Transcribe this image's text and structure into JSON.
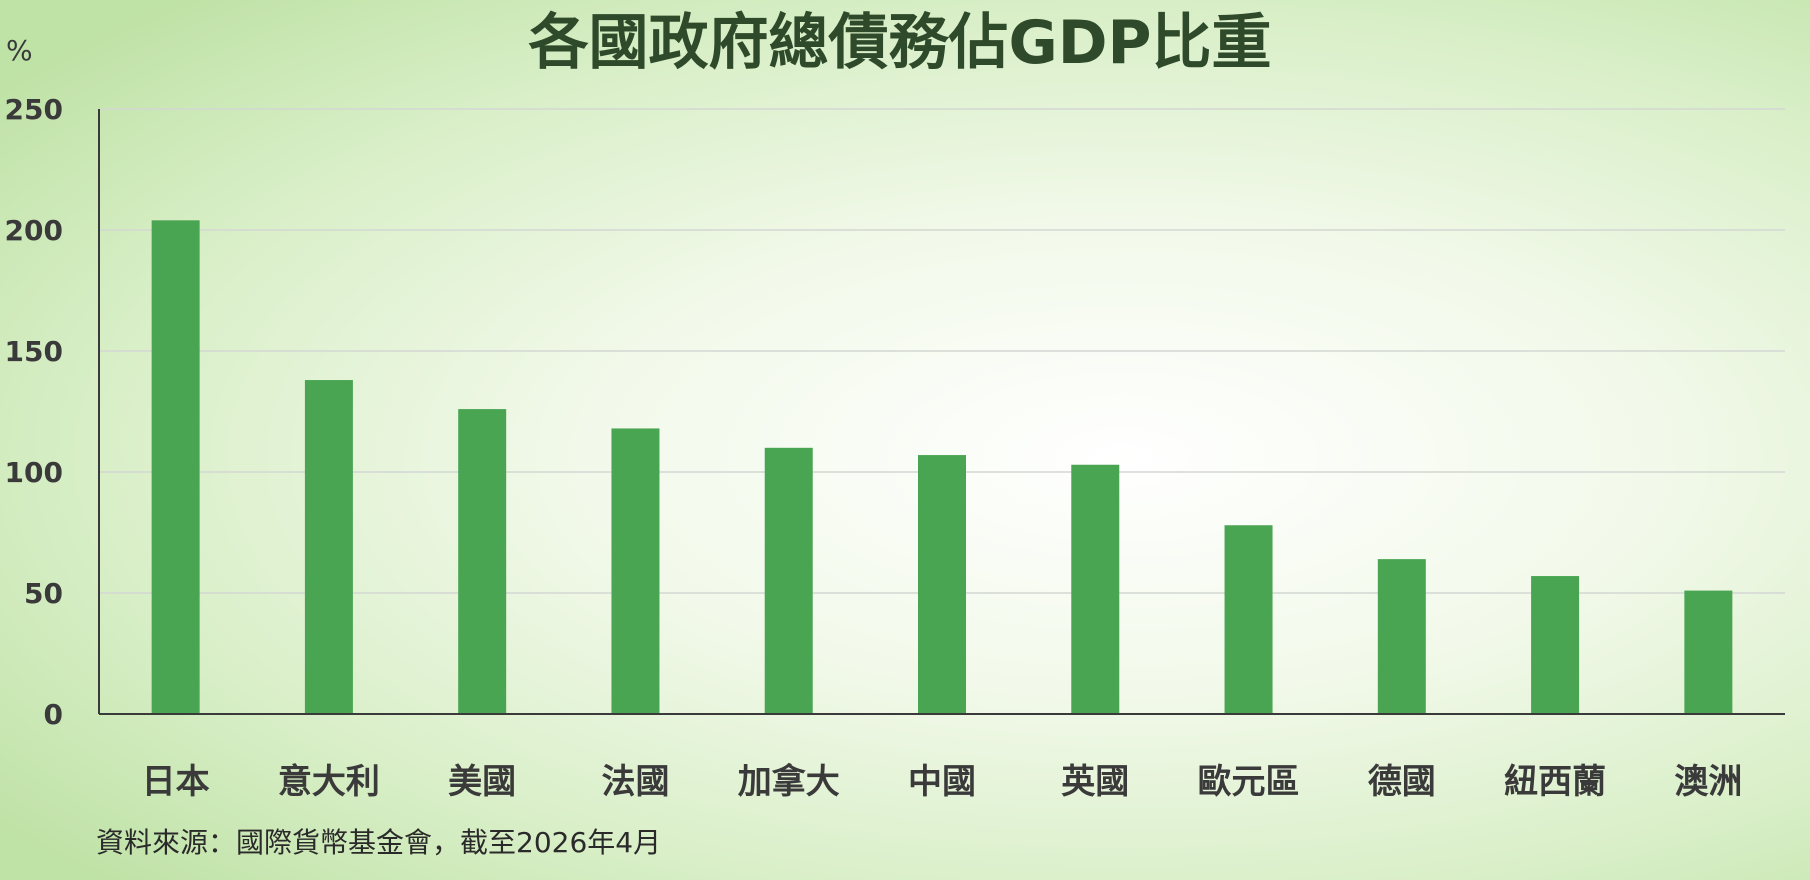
{
  "chart_data": {
    "type": "bar",
    "title": "各國政府總債務佔GDP比重",
    "ylabel": "%",
    "xlabel": "",
    "ylim": [
      0,
      250
    ],
    "yticks": [
      0,
      50,
      100,
      150,
      200,
      250
    ],
    "grid": true,
    "categories": [
      "日本",
      "意大利",
      "美國",
      "法國",
      "加拿大",
      "中國",
      "英國",
      "歐元區",
      "德國",
      "紐西蘭",
      "澳洲"
    ],
    "values": [
      204,
      138,
      126,
      118,
      110,
      107,
      103,
      78,
      64,
      57,
      51
    ],
    "bar_color": "#4aa553",
    "source": "資料來源：國際貨幣基金會，截至2026年4月"
  }
}
